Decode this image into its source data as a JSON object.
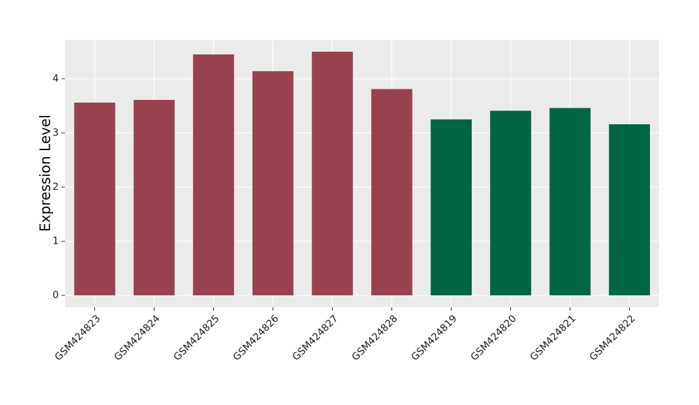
{
  "chart_data": {
    "type": "bar",
    "y_label": "Expression Level",
    "categories": [
      "GSM424823",
      "GSM424824",
      "GSM424825",
      "GSM424826",
      "GSM424827",
      "GSM424828",
      "GSM424819",
      "GSM424820",
      "GSM424821",
      "GSM424822"
    ],
    "values": [
      3.56,
      3.61,
      4.45,
      4.14,
      4.5,
      3.81,
      3.25,
      3.41,
      3.46,
      3.16
    ],
    "colors": [
      "#99424f",
      "#99424f",
      "#99424f",
      "#99424f",
      "#99424f",
      "#99424f",
      "#006543",
      "#006543",
      "#006543",
      "#006543"
    ],
    "ylim": [
      -0.22,
      4.72
    ],
    "yticks": [
      0,
      1,
      2,
      3,
      4
    ],
    "grid": true
  }
}
